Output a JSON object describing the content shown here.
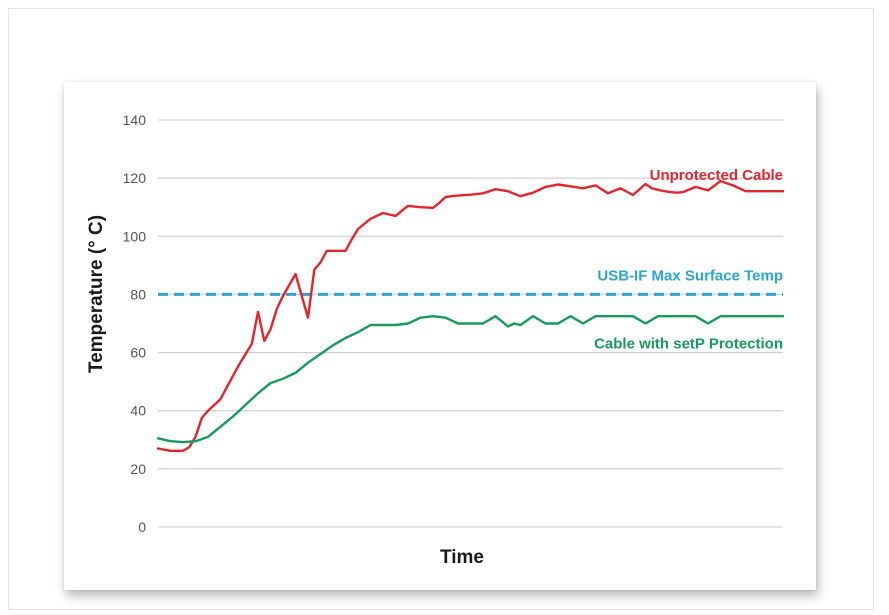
{
  "chart_data": {
    "type": "line",
    "title": "",
    "xlabel": "Time",
    "ylabel": "Temperature (° C)",
    "ylim": [
      0,
      140
    ],
    "yticks": [
      0,
      20,
      40,
      60,
      80,
      100,
      120,
      140
    ],
    "xlim": [
      0,
      100
    ],
    "grid": true,
    "series": [
      {
        "name": "Unprotected Cable",
        "color": "#e0262f",
        "x": [
          0,
          2,
          4,
          5,
          6,
          7,
          8,
          10,
          12,
          13,
          15,
          16,
          17,
          18,
          19,
          20,
          22,
          24,
          25,
          26,
          27,
          28,
          30,
          31,
          32,
          34,
          36,
          37,
          38,
          40,
          41,
          42,
          44,
          45,
          46,
          47,
          48,
          50,
          52,
          54,
          56,
          58,
          60,
          62,
          64,
          66,
          68,
          70,
          72,
          74,
          76,
          78,
          79,
          80,
          81,
          82,
          83,
          84,
          86,
          88,
          90,
          92,
          94,
          95,
          96,
          97,
          98,
          100
        ],
        "values": [
          27,
          26.2,
          26.2,
          27.5,
          31,
          37.5,
          40,
          44,
          52,
          56,
          63,
          74,
          64,
          68,
          75,
          79.5,
          87,
          72,
          88.5,
          91,
          95,
          95,
          95,
          99,
          102.5,
          106,
          108,
          107.5,
          107,
          110.5,
          110.2,
          110,
          109.8,
          111.5,
          113.5,
          113.8,
          114,
          114.3,
          114.8,
          116.2,
          115.5,
          113.8,
          115,
          117,
          117.8,
          117.2,
          116.5,
          117.5,
          114.8,
          116.5,
          114.2,
          118,
          116.5,
          116,
          115.5,
          115.2,
          115,
          115.2,
          117,
          115.8,
          119,
          117.5,
          115.5,
          115.5,
          115.5,
          115.5,
          115.5,
          115.5
        ]
      },
      {
        "name": "Cable with setP Protection",
        "color": "#189a5b",
        "x": [
          0,
          2,
          4,
          6,
          8,
          10,
          12,
          14,
          16,
          18,
          20,
          22,
          24,
          26,
          28,
          30,
          32,
          34,
          35,
          36,
          38,
          40,
          42,
          44,
          46,
          48,
          50,
          52,
          54,
          56,
          57,
          58,
          60,
          62,
          64,
          66,
          68,
          70,
          72,
          74,
          76,
          78,
          80,
          82,
          84,
          86,
          88,
          90,
          92,
          94,
          96,
          98,
          100
        ],
        "values": [
          30.5,
          29.5,
          29.2,
          29.5,
          31,
          34.5,
          38,
          42,
          46,
          49.5,
          51,
          53,
          56.5,
          59.5,
          62.5,
          65,
          67,
          69.5,
          69.5,
          69.5,
          69.5,
          70,
          72,
          72.5,
          72,
          70,
          70,
          70,
          72.5,
          69,
          70,
          69.5,
          72.5,
          70,
          70,
          72.5,
          70,
          72.5,
          72.5,
          72.5,
          72.5,
          70,
          72.5,
          72.5,
          72.5,
          72.5,
          70,
          72.5,
          72.5,
          72.5,
          72.5,
          72.5,
          72.5
        ]
      }
    ],
    "reference_lines": [
      {
        "name": "USB-IF Max Surface Temp",
        "value": 80,
        "color": "#2da3d4",
        "style": "dashed"
      }
    ]
  }
}
